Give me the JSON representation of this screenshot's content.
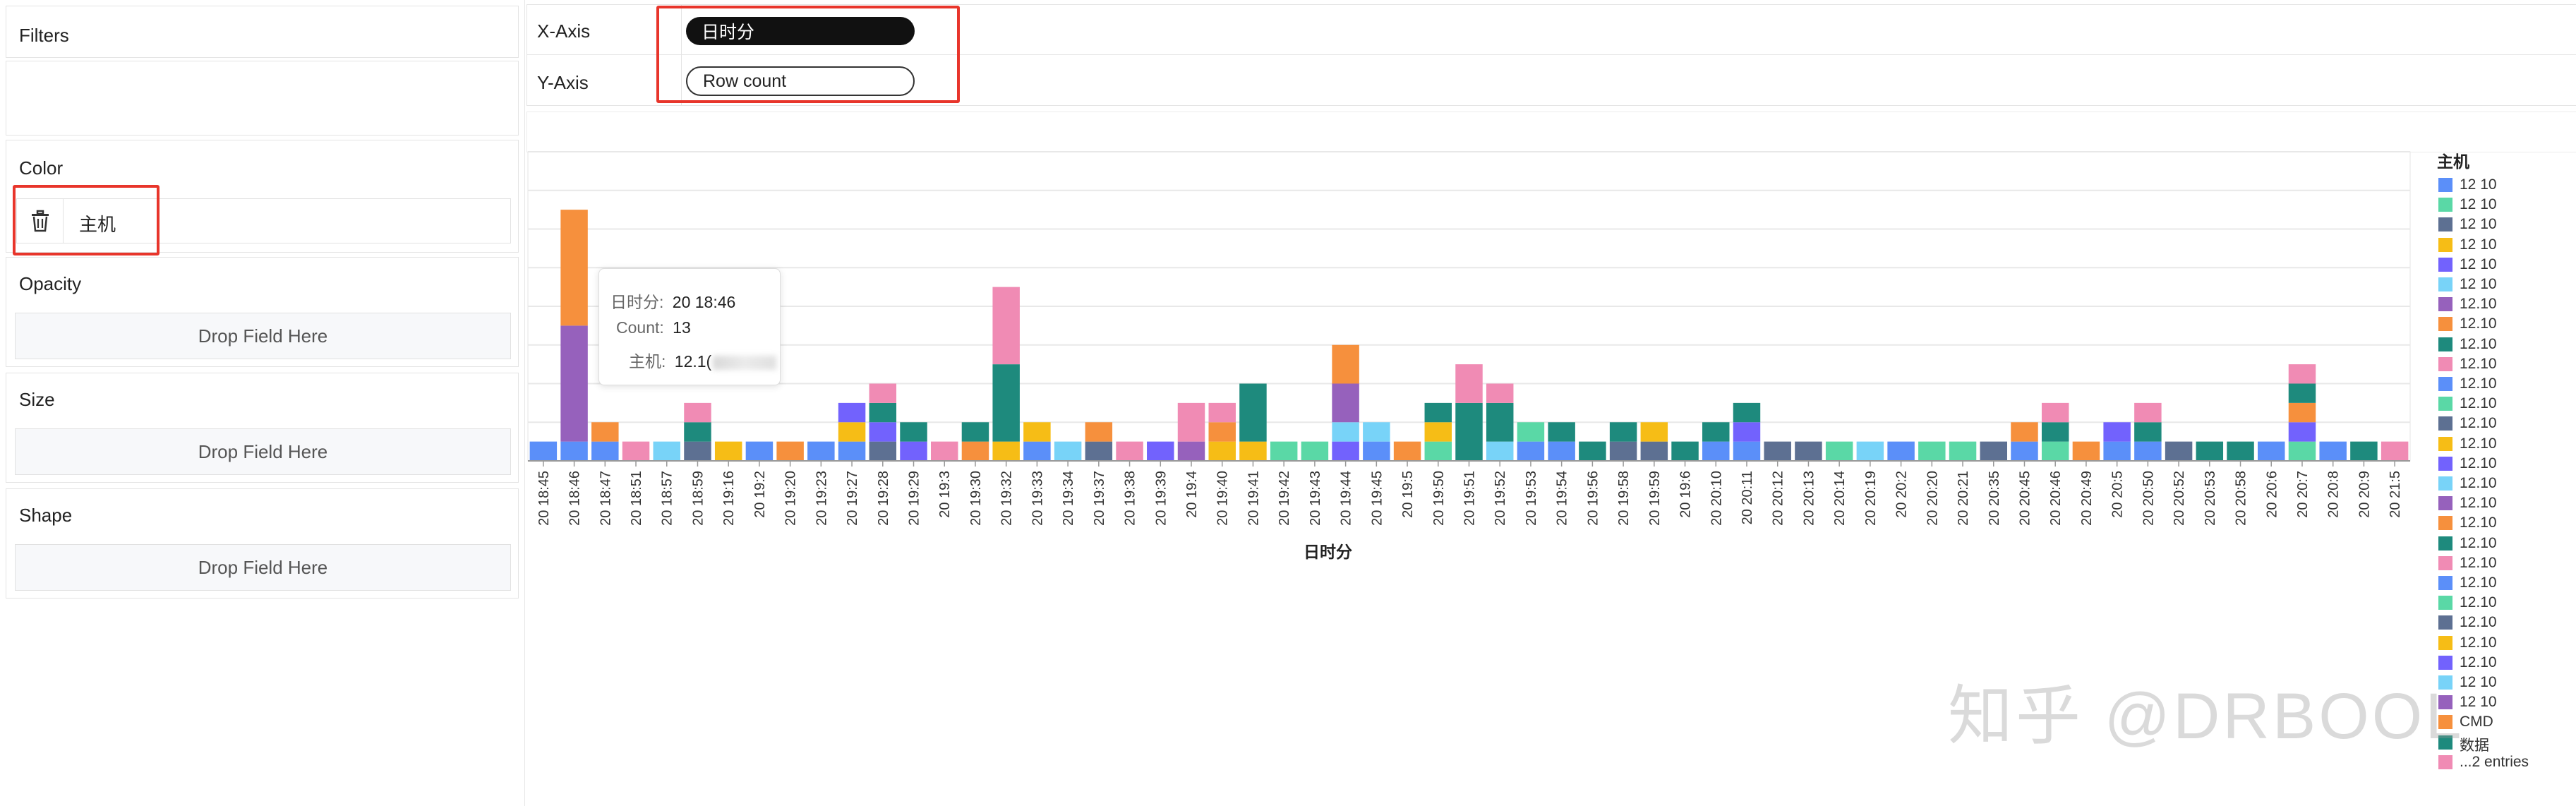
{
  "left_panel": {
    "filters_title": "Filters",
    "color_title": "Color",
    "color_field": "主机",
    "opacity_title": "Opacity",
    "size_title": "Size",
    "shape_title": "Shape",
    "drop_label": "Drop Field Here"
  },
  "axes_config": {
    "x_label": "X-Axis",
    "x_field": "日时分",
    "y_label": "Y-Axis",
    "y_field": "Row count"
  },
  "tooltip": {
    "k1": "日时分:",
    "v1": "20 18:46",
    "k2": "Count:",
    "v2": "13",
    "k3": "主机:",
    "v3": "12.1("
  },
  "legend": {
    "title": "主机",
    "items": [
      {
        "label": "12 10",
        "color": "#5b8ff9"
      },
      {
        "label": "12 10",
        "color": "#5ad8a6"
      },
      {
        "label": "12 10",
        "color": "#5d7092"
      },
      {
        "label": "12 10",
        "color": "#f6bd16"
      },
      {
        "label": "12 10",
        "color": "#7262fd"
      },
      {
        "label": "12 10",
        "color": "#78d3f8"
      },
      {
        "label": "12.10",
        "color": "#9661bc"
      },
      {
        "label": "12.10",
        "color": "#f6903d"
      },
      {
        "label": "12.10",
        "color": "#1e8a7d"
      },
      {
        "label": "12.10",
        "color": "#f08bb4"
      },
      {
        "label": "12.10",
        "color": "#5b8ff9"
      },
      {
        "label": "12.10",
        "color": "#5ad8a6"
      },
      {
        "label": "12.10",
        "color": "#5d7092"
      },
      {
        "label": "12.10",
        "color": "#f6bd16"
      },
      {
        "label": "12.10",
        "color": "#7262fd"
      },
      {
        "label": "12.10",
        "color": "#78d3f8"
      },
      {
        "label": "12.10",
        "color": "#9661bc"
      },
      {
        "label": "12.10",
        "color": "#f6903d"
      },
      {
        "label": "12.10",
        "color": "#1e8a7d"
      },
      {
        "label": "12.10",
        "color": "#f08bb4"
      },
      {
        "label": "12.10",
        "color": "#5b8ff9"
      },
      {
        "label": "12.10",
        "color": "#5ad8a6"
      },
      {
        "label": "12.10",
        "color": "#5d7092"
      },
      {
        "label": "12.10",
        "color": "#f6bd16"
      },
      {
        "label": "12.10",
        "color": "#7262fd"
      },
      {
        "label": "12 10",
        "color": "#78d3f8"
      },
      {
        "label": "12 10",
        "color": "#9661bc"
      },
      {
        "label": "CMD",
        "color": "#f6903d"
      },
      {
        "label": "数据",
        "color": "#1e8a7d"
      },
      {
        "label": "...2 entries",
        "color": "#f08bb4"
      }
    ]
  },
  "watermark": "知乎 @DRBOOL",
  "chart_data": {
    "type": "bar",
    "stacked": true,
    "xlabel": "日时分",
    "ylabel": "",
    "ylim": [
      0,
      16
    ],
    "grid": true,
    "legend_position": "right",
    "categories": [
      "20 18:45",
      "20 18:46",
      "20 18:47",
      "20 18:51",
      "20 18:57",
      "20 18:59",
      "20 19:16",
      "20 19:2",
      "20 19:20",
      "20 19:23",
      "20 19:27",
      "20 19:28",
      "20 19:29",
      "20 19:3",
      "20 19:30",
      "20 19:32",
      "20 19:33",
      "20 19:34",
      "20 19:37",
      "20 19:38",
      "20 19:39",
      "20 19:4",
      "20 19:40",
      "20 19:41",
      "20 19:42",
      "20 19:43",
      "20 19:44",
      "20 19:45",
      "20 19:5",
      "20 19:50",
      "20 19:51",
      "20 19:52",
      "20 19:53",
      "20 19:54",
      "20 19:56",
      "20 19:58",
      "20 19:59",
      "20 19:6",
      "20 20:10",
      "20 20:11",
      "20 20:12",
      "20 20:13",
      "20 20:14",
      "20 20:19",
      "20 20:2",
      "20 20:20",
      "20 20:21",
      "20 20:35",
      "20 20:45",
      "20 20:46",
      "20 20:49",
      "20 20:5",
      "20 20:50",
      "20 20:52",
      "20 20:53",
      "20 20:58",
      "20 20:6",
      "20 20:7",
      "20 20:8",
      "20 20:9",
      "20 21:5"
    ],
    "series": [
      {
        "name": "12 10",
        "color": "#5b8ff9",
        "values": [
          1,
          1,
          1,
          0,
          0,
          0,
          0,
          1,
          0,
          1,
          1,
          0,
          0,
          0,
          0,
          0,
          1,
          0,
          0,
          0,
          0,
          0,
          0,
          0,
          0,
          0,
          0,
          1,
          0,
          0,
          0,
          0,
          1,
          1,
          0,
          0,
          0,
          0,
          1,
          1,
          0,
          0,
          0,
          0,
          1,
          0,
          0,
          0,
          1,
          0,
          0,
          1,
          1,
          0,
          0,
          0,
          1,
          0,
          1,
          0,
          0
        ]
      },
      {
        "name": "12 10",
        "color": "#5ad8a6",
        "values": [
          0,
          0,
          0,
          0,
          0,
          0,
          0,
          0,
          0,
          0,
          0,
          0,
          0,
          0,
          0,
          0,
          0,
          0,
          0,
          0,
          0,
          0,
          0,
          0,
          1,
          1,
          0,
          0,
          0,
          1,
          0,
          0,
          1,
          0,
          0,
          0,
          0,
          0,
          0,
          0,
          0,
          0,
          1,
          0,
          0,
          1,
          1,
          0,
          0,
          1,
          0,
          0,
          0,
          0,
          0,
          0,
          0,
          1,
          0,
          0,
          0
        ]
      },
      {
        "name": "12 10",
        "color": "#5d7092",
        "values": [
          0,
          0,
          0,
          0,
          0,
          1,
          0,
          0,
          0,
          0,
          0,
          1,
          0,
          0,
          0,
          0,
          0,
          0,
          1,
          0,
          0,
          0,
          0,
          0,
          0,
          0,
          0,
          0,
          0,
          0,
          0,
          0,
          0,
          0,
          0,
          1,
          1,
          0,
          0,
          0,
          1,
          1,
          0,
          0,
          0,
          0,
          0,
          1,
          0,
          0,
          0,
          0,
          0,
          1,
          0,
          0,
          0,
          0,
          0,
          0,
          0
        ]
      },
      {
        "name": "12 10",
        "color": "#f6bd16",
        "values": [
          0,
          0,
          0,
          0,
          0,
          0,
          1,
          0,
          0,
          0,
          1,
          0,
          0,
          0,
          0,
          1,
          1,
          0,
          0,
          0,
          0,
          0,
          1,
          1,
          0,
          0,
          0,
          0,
          0,
          1,
          0,
          0,
          0,
          0,
          0,
          0,
          1,
          0,
          0,
          0,
          0,
          0,
          0,
          0,
          0,
          0,
          0,
          0,
          0,
          0,
          0,
          0,
          0,
          0,
          0,
          0,
          0,
          0,
          0,
          0,
          0
        ]
      },
      {
        "name": "12 10",
        "color": "#7262fd",
        "values": [
          0,
          0,
          0,
          0,
          0,
          0,
          0,
          0,
          0,
          0,
          1,
          1,
          1,
          0,
          0,
          0,
          0,
          0,
          0,
          0,
          1,
          0,
          0,
          0,
          0,
          0,
          1,
          0,
          0,
          0,
          0,
          0,
          0,
          0,
          0,
          0,
          0,
          0,
          0,
          1,
          0,
          0,
          0,
          0,
          0,
          0,
          0,
          0,
          0,
          0,
          0,
          1,
          0,
          0,
          0,
          0,
          0,
          1,
          0,
          0,
          0
        ]
      },
      {
        "name": "12 10",
        "color": "#78d3f8",
        "values": [
          0,
          0,
          0,
          0,
          1,
          0,
          0,
          0,
          0,
          0,
          0,
          0,
          0,
          0,
          0,
          0,
          0,
          1,
          0,
          0,
          0,
          0,
          0,
          0,
          0,
          0,
          1,
          1,
          0,
          0,
          0,
          1,
          0,
          0,
          0,
          0,
          0,
          0,
          0,
          0,
          0,
          0,
          0,
          1,
          0,
          0,
          0,
          0,
          0,
          0,
          0,
          0,
          0,
          0,
          0,
          0,
          0,
          0,
          0,
          0,
          0
        ]
      },
      {
        "name": "12.10",
        "color": "#9661bc",
        "values": [
          0,
          6,
          0,
          0,
          0,
          0,
          0,
          0,
          0,
          0,
          0,
          0,
          0,
          0,
          0,
          0,
          0,
          0,
          0,
          0,
          0,
          1,
          0,
          0,
          0,
          0,
          2,
          0,
          0,
          0,
          0,
          0,
          0,
          0,
          0,
          0,
          0,
          0,
          0,
          0,
          0,
          0,
          0,
          0,
          0,
          0,
          0,
          0,
          0,
          0,
          0,
          0,
          0,
          0,
          0,
          0,
          0,
          0,
          0,
          0,
          0
        ]
      },
      {
        "name": "12.10",
        "color": "#f6903d",
        "values": [
          0,
          6,
          1,
          0,
          0,
          0,
          0,
          0,
          1,
          0,
          0,
          0,
          0,
          0,
          1,
          0,
          0,
          0,
          1,
          0,
          0,
          0,
          1,
          0,
          0,
          0,
          2,
          0,
          1,
          0,
          0,
          0,
          0,
          0,
          0,
          0,
          0,
          0,
          0,
          0,
          0,
          0,
          0,
          0,
          0,
          0,
          0,
          0,
          1,
          0,
          1,
          0,
          0,
          0,
          0,
          0,
          0,
          1,
          0,
          0,
          0
        ]
      },
      {
        "name": "12.10",
        "color": "#1e8a7d",
        "values": [
          0,
          0,
          0,
          0,
          0,
          1,
          0,
          0,
          0,
          0,
          0,
          1,
          1,
          0,
          1,
          4,
          0,
          0,
          0,
          0,
          0,
          0,
          0,
          3,
          0,
          0,
          0,
          0,
          0,
          1,
          3,
          2,
          0,
          1,
          1,
          1,
          0,
          1,
          1,
          1,
          0,
          0,
          0,
          0,
          0,
          0,
          0,
          0,
          0,
          1,
          0,
          0,
          1,
          0,
          1,
          1,
          0,
          1,
          0,
          1,
          0
        ]
      },
      {
        "name": "12.10",
        "color": "#f08bb4",
        "values": [
          0,
          0,
          0,
          1,
          0,
          1,
          0,
          0,
          0,
          0,
          0,
          1,
          0,
          1,
          0,
          4,
          0,
          0,
          0,
          1,
          0,
          2,
          1,
          0,
          0,
          0,
          0,
          0,
          0,
          0,
          2,
          1,
          0,
          0,
          0,
          0,
          0,
          0,
          0,
          0,
          0,
          0,
          0,
          0,
          0,
          0,
          0,
          0,
          0,
          1,
          0,
          0,
          1,
          0,
          0,
          0,
          0,
          1,
          0,
          0,
          1
        ]
      }
    ]
  }
}
